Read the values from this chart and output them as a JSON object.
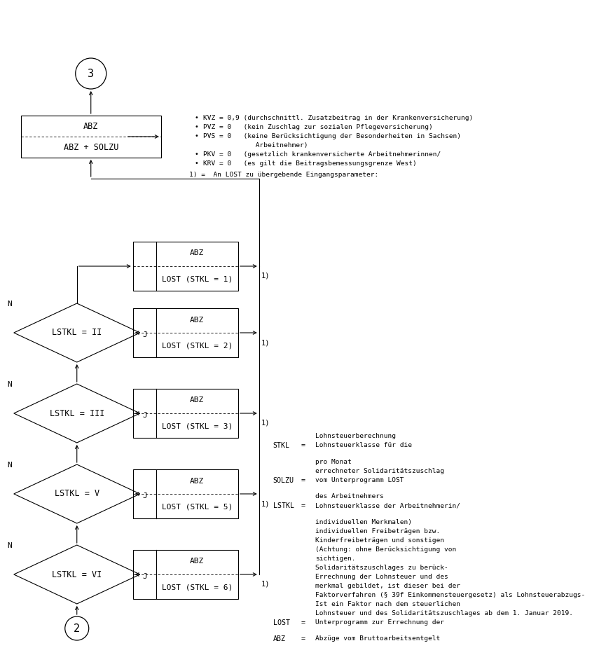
{
  "bg_color": "#ffffff",
  "circle2_label": "2",
  "circle3_label": "3",
  "diamond_labels": [
    "LSTKL = VI",
    "LSTKL = V",
    "LSTKL = III",
    "LSTKL = II"
  ],
  "box_lines": [
    [
      "LOST (STKL = 6)",
      "ABZ"
    ],
    [
      "LOST (STKL = 5)",
      "ABZ"
    ],
    [
      "LOST (STKL = 3)",
      "ABZ"
    ],
    [
      "LOST (STKL = 2)",
      "ABZ"
    ],
    [
      "LOST (STKL = 1)",
      "ABZ"
    ]
  ],
  "final_box_lines": [
    "ABZ + SOLZU",
    "ABZ"
  ],
  "legend_abz": "ABZ",
  "legend_abz_eq": "=",
  "legend_abz_text": "Abzüge vom Bruttoarbeitsentgelt",
  "legend_lost": "LOST",
  "legend_lost_eq": "=",
  "legend_lost_lines": [
    "Unterprogramm zur Errechnung der",
    "Lohnsteuer und des Solidaritätszuschlages ab dem 1. Januar 2019.",
    "Ist ein Faktor nach dem steuerlichen",
    "Faktorverfahren (§ 39f Einkommensteuergesetz) als Lohnsteuerabzugs-",
    "merkmal gebildet, ist dieser bei der",
    "Errechnung der Lohnsteuer und des",
    "Solidaritätszuschlages zu berück-",
    "sichtigen.",
    "(Achtung: ohne Berücksichtigung von",
    "Kinderfreibeträgen und sonstigen",
    "individuellen Freibeträgen bzw.",
    "individuellen Merkmalen)"
  ],
  "legend_lstkl": "LSTKL",
  "legend_lstkl_eq": "=",
  "legend_lstkl_lines": [
    "Lohnsteuerklasse der Arbeitnehmerin/",
    "des Arbeitnehmers"
  ],
  "legend_solzu": "SOLZU",
  "legend_solzu_eq": "=",
  "legend_solzu_lines": [
    "vom Unterprogramm LOST",
    "errechneter Solidaritätszuschlag",
    "pro Monat"
  ],
  "legend_stkl": "STKL",
  "legend_stkl_eq": "=",
  "legend_stkl_lines": [
    "Lohnsteuerklasse für die",
    "Lohnsteuerberechnung"
  ],
  "footnote_header": "1) =  An LOST zu übergebende Eingangsparameter:",
  "footnote_items": [
    "KRV = 0   (es gilt die Beitragsbemessungsgrenze West)",
    "PKV = 0   (gesetzlich krankenversicherte Arbeitnehmerinnen/",
    "             Arbeitnehmer)",
    "PVS = 0   (keine Berücksichtigung der Besonderheiten in Sachsen)",
    "PVZ = 0   (kein Zuschlag zur sozialen Pflegeversicherung)",
    "KVZ = 0,9 (durchschnittl. Zusatzbeitrag in der Krankenversicherung)"
  ],
  "footnote_bullets": [
    true,
    true,
    false,
    true,
    true,
    true
  ]
}
